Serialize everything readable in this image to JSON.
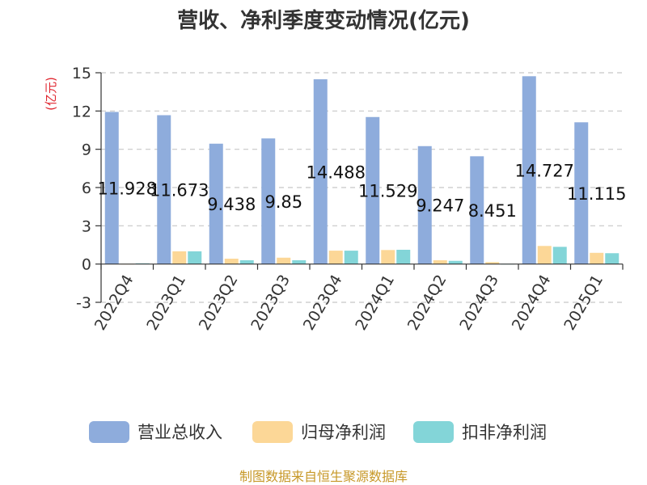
{
  "chart_data": {
    "type": "bar",
    "title": "营收、净利季度变动情况(亿元)",
    "ylabel": "(亿元)",
    "ylim": [
      -3,
      15
    ],
    "yticks": [
      -3,
      0,
      3,
      6,
      9,
      12,
      15
    ],
    "grid": true,
    "legend_position": "bottom",
    "categories": [
      "2022Q4",
      "2023Q1",
      "2023Q2",
      "2023Q3",
      "2023Q4",
      "2024Q1",
      "2024Q2",
      "2024Q3",
      "2024Q4",
      "2025Q1"
    ],
    "series": [
      {
        "name": "营业总收入",
        "color": "#8eacdc",
        "values": [
          11.928,
          11.673,
          9.438,
          9.85,
          14.488,
          11.529,
          9.247,
          8.451,
          14.727,
          11.115
        ],
        "labels": [
          "11.928",
          "11.673",
          "9.438",
          "9.85",
          "14.488",
          "11.529",
          "9.247",
          "8.451",
          "14.727",
          "11.115"
        ]
      },
      {
        "name": "归母净利润",
        "color": "#fcd797",
        "values": [
          0.02,
          1.0,
          0.42,
          0.5,
          1.05,
          1.1,
          0.3,
          0.15,
          1.42,
          0.88
        ]
      },
      {
        "name": "扣非净利润",
        "color": "#83d5d8",
        "values": [
          0.06,
          1.0,
          0.3,
          0.3,
          1.05,
          1.12,
          0.25,
          0.02,
          1.35,
          0.85
        ]
      }
    ]
  },
  "colors": {
    "unit_label": "#e0262f",
    "source_text": "#c79828",
    "axis": "#333333",
    "grid": "#c8c8c8"
  },
  "source": "制图数据来自恒生聚源数据库"
}
